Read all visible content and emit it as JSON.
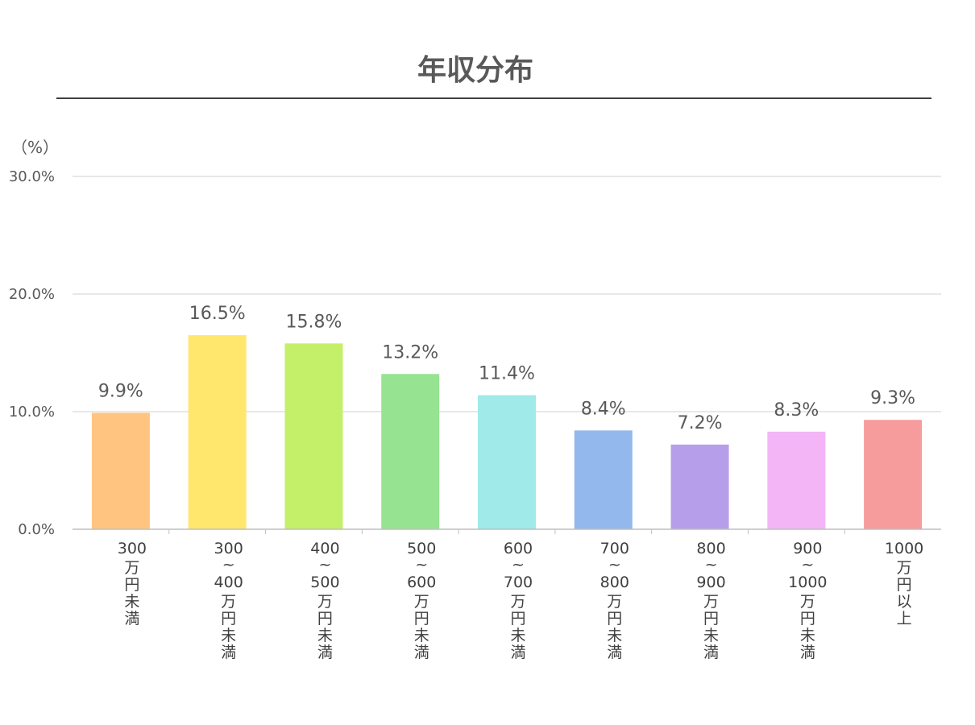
{
  "chart_data": {
    "type": "bar",
    "title": "年収分布",
    "ylabel": "（%）",
    "ylim": [
      0,
      30
    ],
    "yticks": [
      "0.0%",
      "10.0%",
      "20.0%",
      "30.0%"
    ],
    "ytick_values": [
      0,
      10,
      20,
      30
    ],
    "grid": true,
    "categories": [
      [
        "300",
        "万円未満"
      ],
      [
        "300",
        "~",
        "400",
        "万円未満"
      ],
      [
        "400",
        "~",
        "500",
        "万円未満"
      ],
      [
        "500",
        "~",
        "600",
        "万円未満"
      ],
      [
        "600",
        "~",
        "700",
        "万円未満"
      ],
      [
        "700",
        "~",
        "800",
        "万円未満"
      ],
      [
        "800",
        "~",
        "900",
        "万円未満"
      ],
      [
        "900",
        "~",
        "1000",
        "万円未満"
      ],
      [
        "1000",
        "万円以上"
      ]
    ],
    "values": [
      9.9,
      16.5,
      15.8,
      13.2,
      11.4,
      8.4,
      7.2,
      8.3,
      9.3
    ],
    "data_labels": [
      "9.9%",
      "16.5%",
      "15.8%",
      "13.2%",
      "11.4%",
      "8.4%",
      "7.2%",
      "8.3%",
      "9.3%"
    ],
    "colors": [
      "#ffc580",
      "#ffe66d",
      "#c4ef69",
      "#96e392",
      "#a0eaea",
      "#92b8ee",
      "#b79eea",
      "#f3b5f5",
      "#f79c9c"
    ]
  }
}
